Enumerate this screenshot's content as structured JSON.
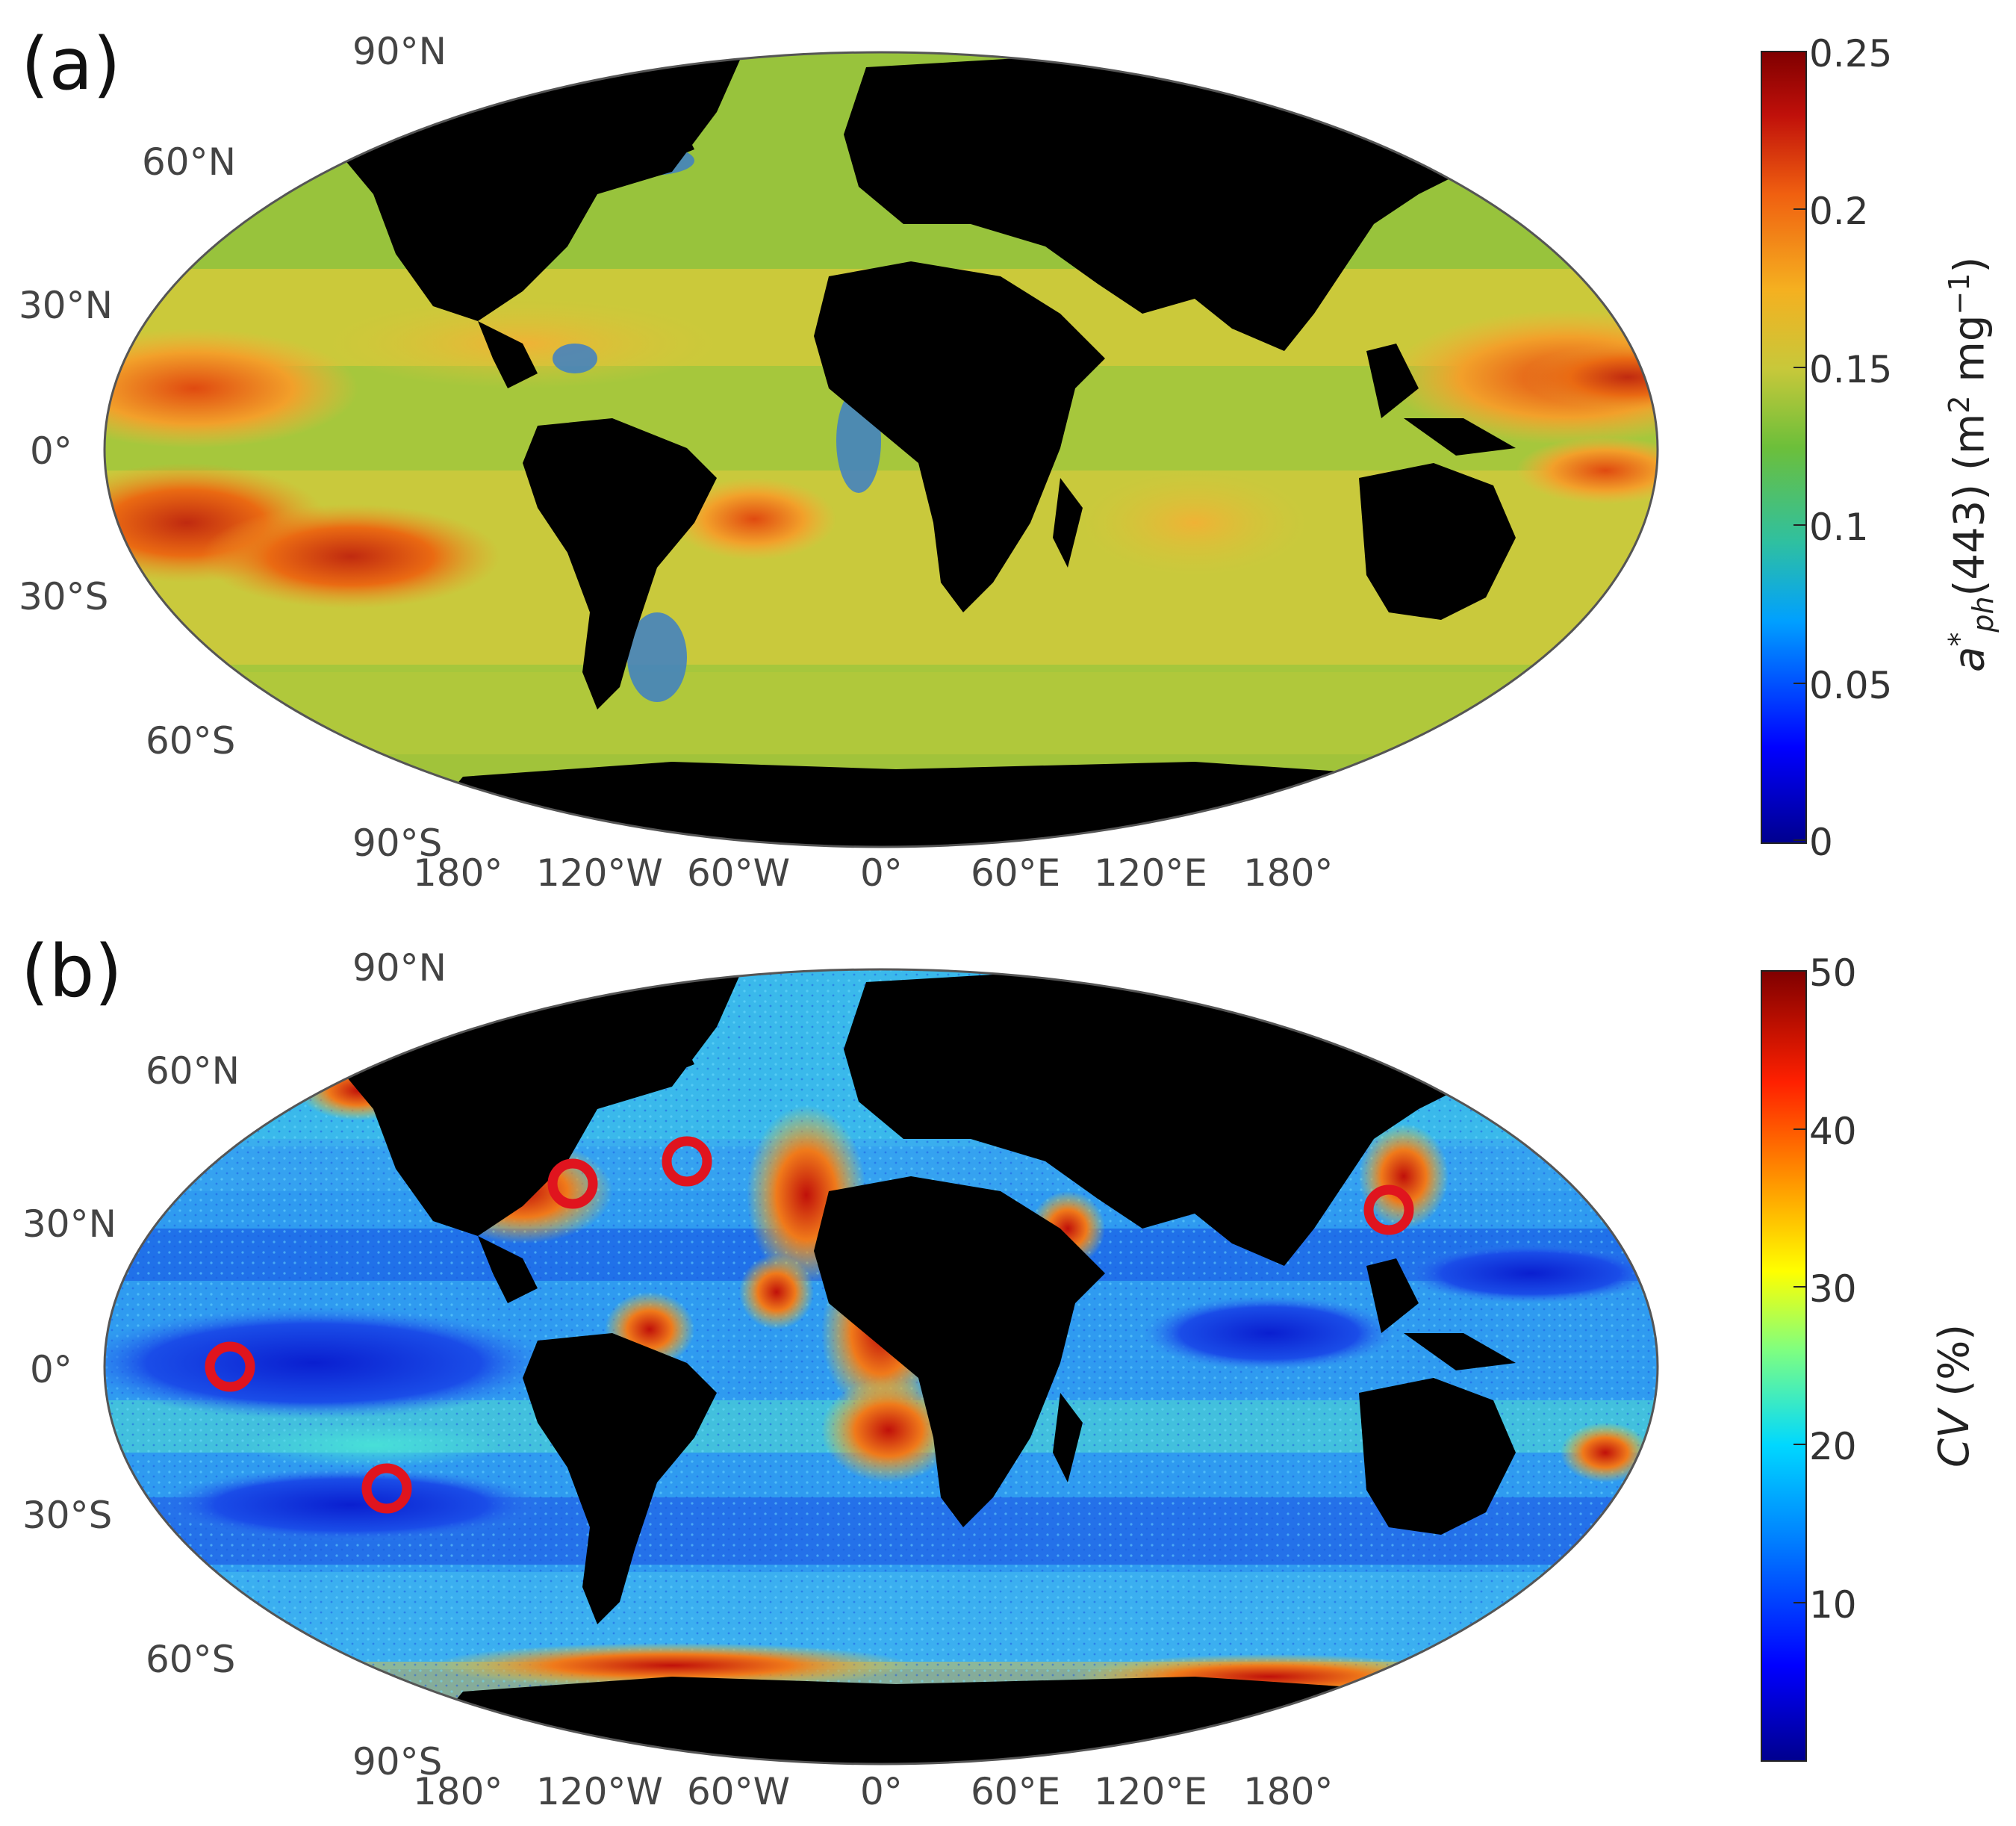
{
  "panel_a": {
    "letter": "(a)",
    "lat_labels": [
      "90°N",
      "60°N",
      "30°N",
      "0°",
      "30°S",
      "60°S",
      "90°S"
    ],
    "lon_labels": [
      "180°",
      "120°W",
      "60°W",
      "0°",
      "60°E",
      "120°E",
      "180°"
    ],
    "colorbar": {
      "ticks": [
        "0.25",
        "0.2",
        "0.15",
        "0.1",
        "0.05",
        "0"
      ],
      "label_main": "a",
      "label_sup": "*",
      "label_sub": "ph",
      "label_rest": "(443)  (m",
      "label_exp1": "2",
      "label_mid": " mg",
      "label_exp2": "−1",
      "label_end": ")",
      "range": [
        0,
        0.25
      ],
      "colormap": "jet"
    }
  },
  "panel_b": {
    "letter": "(b)",
    "lat_labels": [
      "90°N",
      "60°N",
      "30°N",
      "0°",
      "30°S",
      "60°S",
      "90°S"
    ],
    "lon_labels": [
      "180°",
      "120°W",
      "60°W",
      "0°",
      "60°E",
      "120°E",
      "180°"
    ],
    "colorbar": {
      "ticks": [
        "50",
        "40",
        "30",
        "20",
        "10"
      ],
      "label_italic": "CV",
      "label_rest": "  (%)",
      "range": [
        0,
        50
      ],
      "colormap": "jet"
    },
    "markers_color": "#e0141e"
  },
  "colors": {
    "land": "#000000",
    "ocean_a_background": "#a8c83a",
    "ocean_b_background": "#2f9bf0"
  }
}
